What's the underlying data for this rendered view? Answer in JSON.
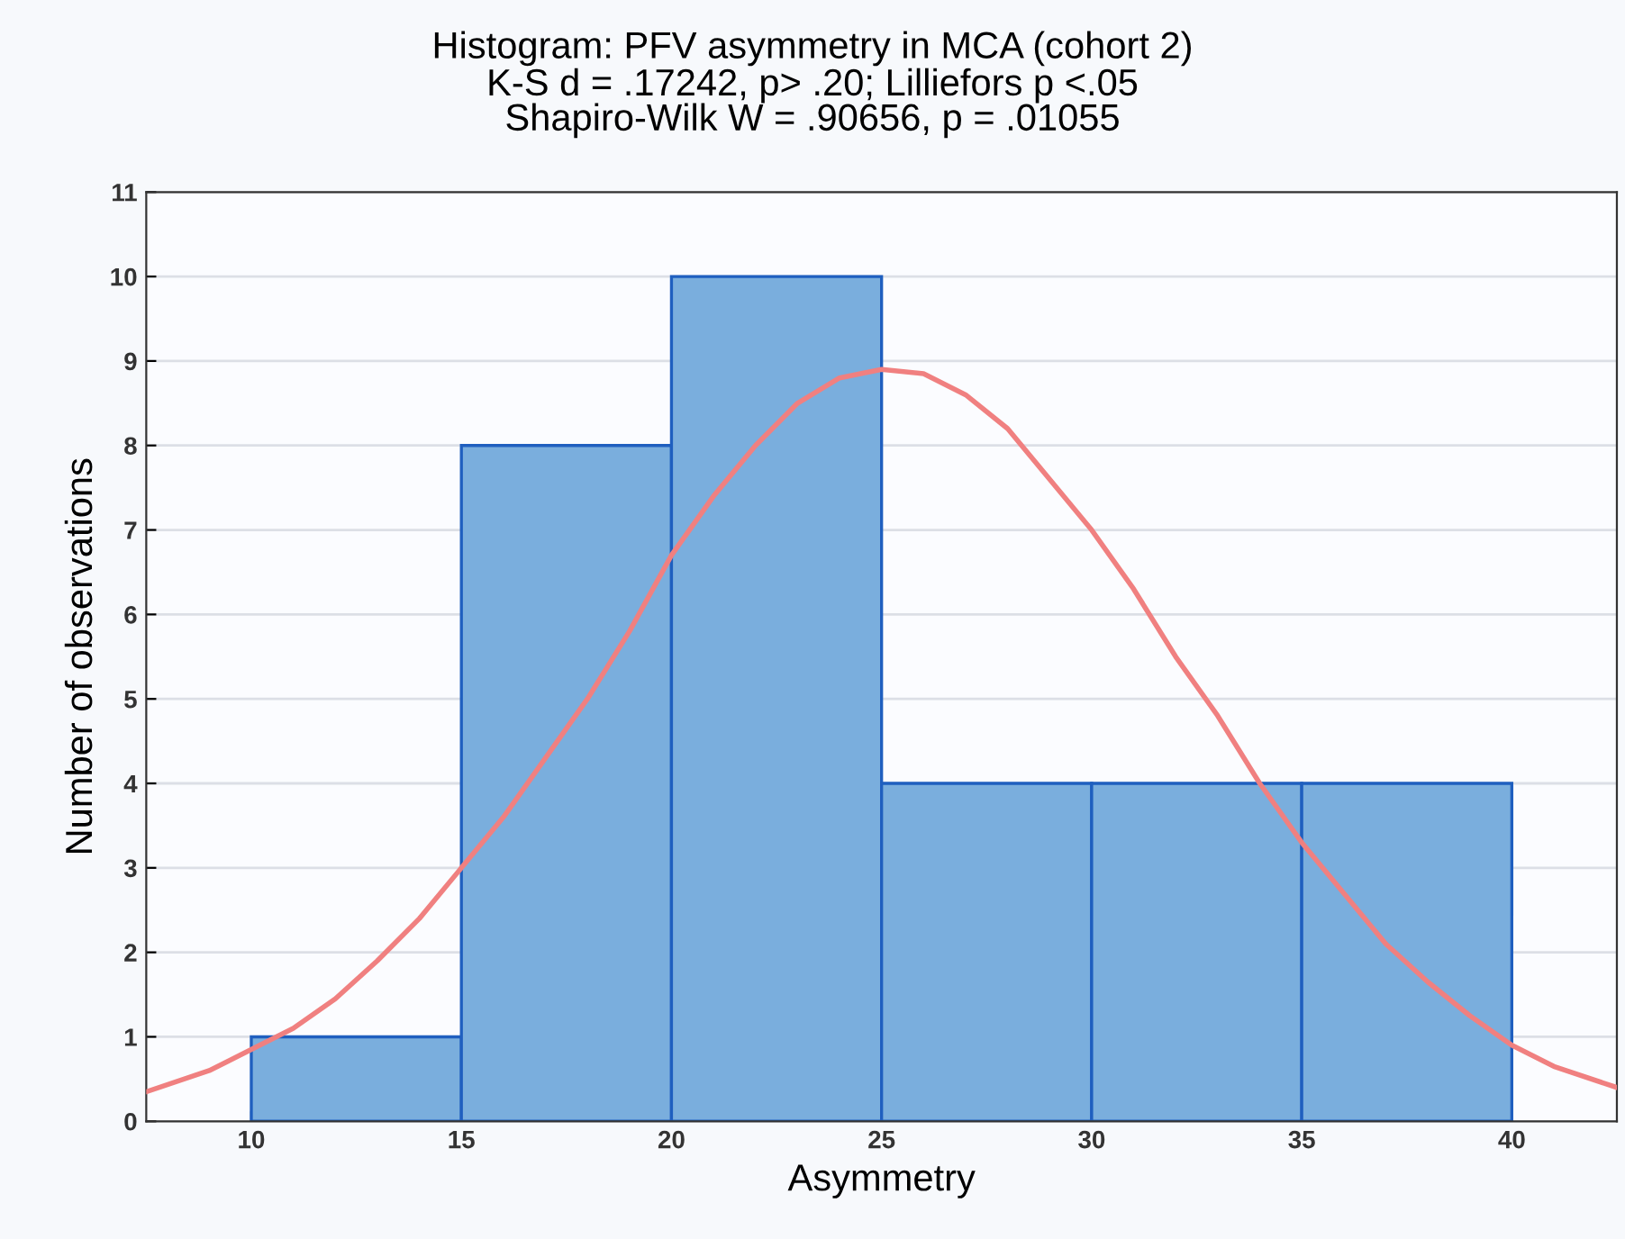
{
  "chart_data": {
    "type": "histogram",
    "title": "Histogram: PFV asymmetry in MCA (cohort 2)",
    "subtitle": "K-S d = .17242, p> .20; Lilliefors p <.05\nShapiro-Wilk W = .90656, p = .01055",
    "xlabel": "Asymmetry",
    "ylabel": "Number of observations",
    "bins": [
      10,
      15,
      20,
      25,
      30,
      35,
      40
    ],
    "values": [
      1,
      8,
      10,
      4,
      4,
      4
    ],
    "color": "#7aaedd",
    "series": [
      {
        "type": "line",
        "color": "#f08080",
        "x": [
          7.5,
          9,
          10,
          11,
          12,
          13,
          14,
          15,
          16,
          17,
          18,
          19,
          20,
          21,
          22,
          23,
          24,
          25,
          26,
          27,
          28,
          29,
          30,
          31,
          32,
          33,
          34,
          35,
          36,
          37,
          38,
          39,
          40,
          41,
          42.5
        ],
        "values": [
          0.35,
          0.6,
          0.85,
          1.1,
          1.45,
          1.9,
          2.4,
          3.0,
          3.6,
          4.3,
          5.0,
          5.8,
          6.7,
          7.4,
          8.0,
          8.5,
          8.8,
          8.9,
          8.85,
          8.6,
          8.2,
          7.6,
          7.0,
          6.3,
          5.5,
          4.8,
          4.0,
          3.3,
          2.7,
          2.1,
          1.65,
          1.25,
          0.9,
          0.65,
          0.4
        ]
      }
    ],
    "xlim": [
      7.5,
      42.5
    ],
    "xticks": [
      10,
      15,
      20,
      25,
      30,
      35,
      40
    ],
    "ylim": [
      0,
      11
    ],
    "yticks": [
      0,
      1,
      2,
      3,
      4,
      5,
      6,
      7,
      8,
      9,
      10,
      11
    ],
    "grid": "y"
  }
}
